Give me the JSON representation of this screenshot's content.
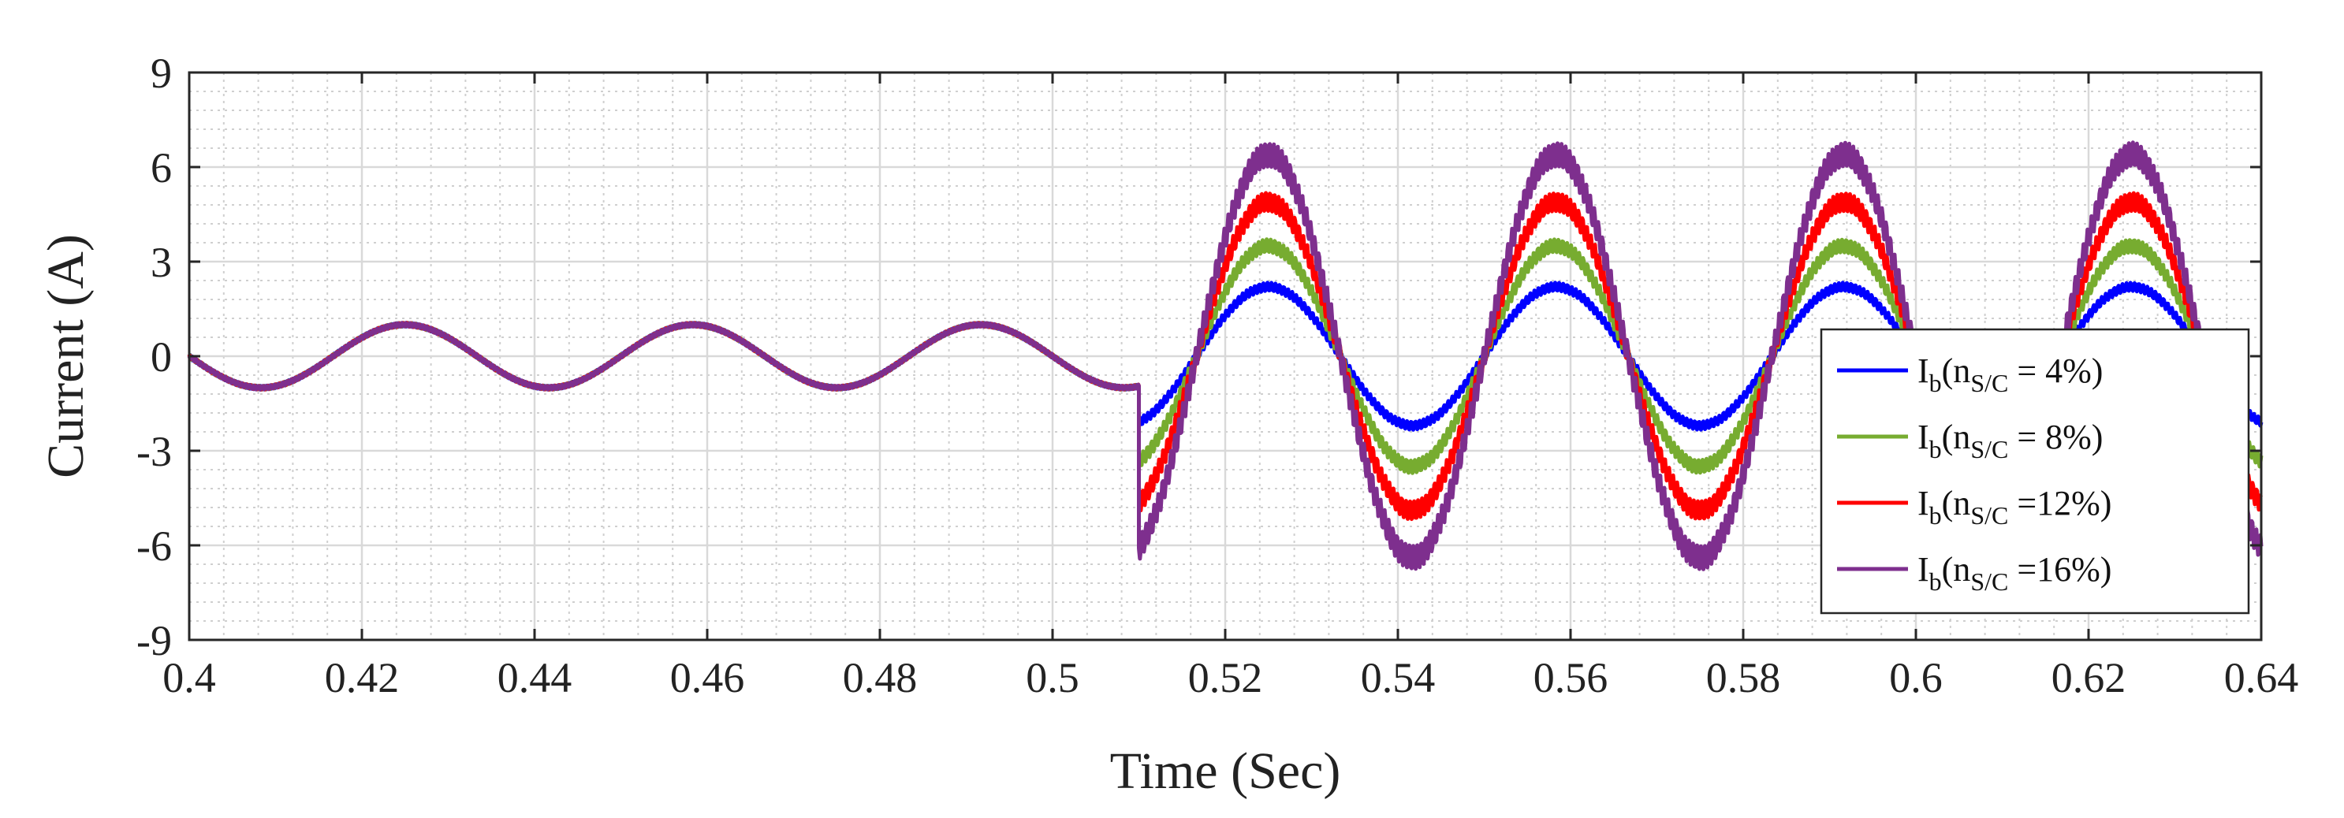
{
  "chart_data": {
    "type": "line",
    "title": "",
    "xlabel": "Time (Sec)",
    "ylabel": "Current (A)",
    "xlim": [
      0.4,
      0.64
    ],
    "ylim": [
      -9,
      9
    ],
    "x_ticks": [
      0.4,
      0.42,
      0.44,
      0.46,
      0.48,
      0.5,
      0.52,
      0.54,
      0.56,
      0.58,
      0.6,
      0.62,
      0.64
    ],
    "x_tick_labels": [
      "0.4",
      "0.42",
      "0.44",
      "0.46",
      "0.48",
      "0.5",
      "0.52",
      "0.54",
      "0.56",
      "0.58",
      "0.6",
      "0.62",
      "0.64"
    ],
    "y_ticks": [
      -9,
      -6,
      -3,
      0,
      3,
      6,
      9
    ],
    "y_tick_labels": [
      "-9",
      "-6",
      "-3",
      "0",
      "3",
      "6",
      "9"
    ],
    "grid": true,
    "minor_grid": true,
    "legend_position": "bottom-right",
    "waveform": {
      "frequency_hz": 30,
      "pre_event_amplitude": 1.0,
      "event_time": 0.51,
      "phase_rad": 0
    },
    "series": [
      {
        "name": "Ib(nS/C = 4%)",
        "label_main": "I",
        "label_sub1": "b",
        "label_mid": "(n",
        "label_sub2": "S/C",
        "label_end": " = 4%)",
        "color": "#0000ff",
        "post_event_amplitude": 2.2
      },
      {
        "name": "Ib(nS/C = 8%)",
        "label_main": "I",
        "label_sub1": "b",
        "label_mid": "(n",
        "label_sub2": "S/C",
        "label_end": " = 8%)",
        "color": "#77ac30",
        "post_event_amplitude": 3.5
      },
      {
        "name": "Ib(nS/C =12%)",
        "label_main": "I",
        "label_sub1": "b",
        "label_mid": "(n",
        "label_sub2": "S/C",
        "label_end": " =12%)",
        "color": "#ff0000",
        "post_event_amplitude": 4.9
      },
      {
        "name": "Ib(nS/C =16%)",
        "label_main": "I",
        "label_sub1": "b",
        "label_mid": "(n",
        "label_sub2": "S/C",
        "label_end": " =16%)",
        "color": "#7e2f8e",
        "post_event_amplitude": 6.4
      }
    ]
  }
}
